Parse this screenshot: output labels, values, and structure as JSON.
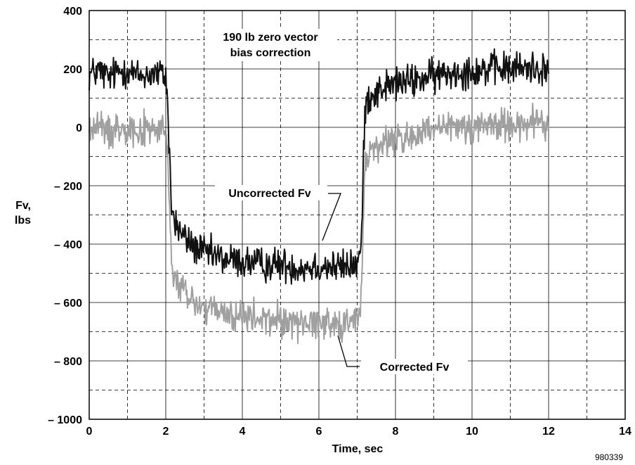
{
  "chart_data": {
    "type": "line",
    "title": "",
    "xlabel": "Time, sec",
    "ylabel_lines": [
      "Fv,",
      "lbs"
    ],
    "xlim": [
      0,
      14
    ],
    "ylim": [
      -1000,
      400
    ],
    "x_ticks": [
      0,
      2,
      4,
      6,
      8,
      10,
      12,
      14
    ],
    "y_ticks": [
      400,
      200,
      0,
      -200,
      -400,
      -600,
      -800,
      -1000
    ],
    "y_tick_labels": [
      "400",
      "200",
      "0",
      "– 200",
      "– 400",
      "– 600",
      "– 800",
      "– 1000"
    ],
    "grid": true,
    "series": [
      {
        "name": "Uncorrected Fv",
        "color": "#111111",
        "x": [
          0,
          0.25,
          0.5,
          0.75,
          1.0,
          1.25,
          1.5,
          1.75,
          2.0,
          2.05,
          2.1,
          2.15,
          2.25,
          2.5,
          2.75,
          3.0,
          3.5,
          4.0,
          4.5,
          5.0,
          5.5,
          6.0,
          6.5,
          7.0,
          7.1,
          7.15,
          7.2,
          7.3,
          7.5,
          7.75,
          8.0,
          8.5,
          9.0,
          9.5,
          10.0,
          10.5,
          11.0,
          11.5,
          12.0
        ],
        "y": [
          180,
          195,
          170,
          190,
          200,
          175,
          180,
          185,
          175,
          80,
          -100,
          -280,
          -330,
          -380,
          -410,
          -430,
          -450,
          -460,
          -470,
          -470,
          -480,
          -475,
          -480,
          -470,
          -420,
          -200,
          60,
          110,
          120,
          140,
          150,
          160,
          175,
          190,
          195,
          200,
          200,
          205,
          200
        ],
        "noise_amplitude": 45
      },
      {
        "name": "Corrected Fv",
        "color": "#a0a0a0",
        "x": [
          0,
          0.25,
          0.5,
          0.75,
          1.0,
          1.25,
          1.5,
          1.75,
          2.0,
          2.05,
          2.1,
          2.15,
          2.25,
          2.5,
          2.75,
          3.0,
          3.5,
          4.0,
          4.5,
          5.0,
          5.5,
          6.0,
          6.5,
          7.0,
          7.1,
          7.15,
          7.2,
          7.3,
          7.5,
          7.75,
          8.0,
          8.5,
          9.0,
          9.5,
          10.0,
          10.5,
          11.0,
          11.5,
          12.0
        ],
        "y": [
          -10,
          5,
          -20,
          0,
          10,
          -15,
          -10,
          -5,
          -15,
          -110,
          -290,
          -470,
          -520,
          -570,
          -600,
          -620,
          -640,
          -650,
          -660,
          -660,
          -670,
          -665,
          -670,
          -660,
          -610,
          -390,
          -130,
          -80,
          -70,
          -50,
          -40,
          -30,
          -15,
          0,
          5,
          10,
          10,
          15,
          10
        ],
        "noise_amplitude": 45
      }
    ],
    "annotations": {
      "bias_line1": "190 lb zero vector",
      "bias_line2": "bias correction",
      "uncorrected_label": "Uncorrected Fv",
      "corrected_label": "Corrected Fv"
    },
    "figure_id": "980339"
  }
}
